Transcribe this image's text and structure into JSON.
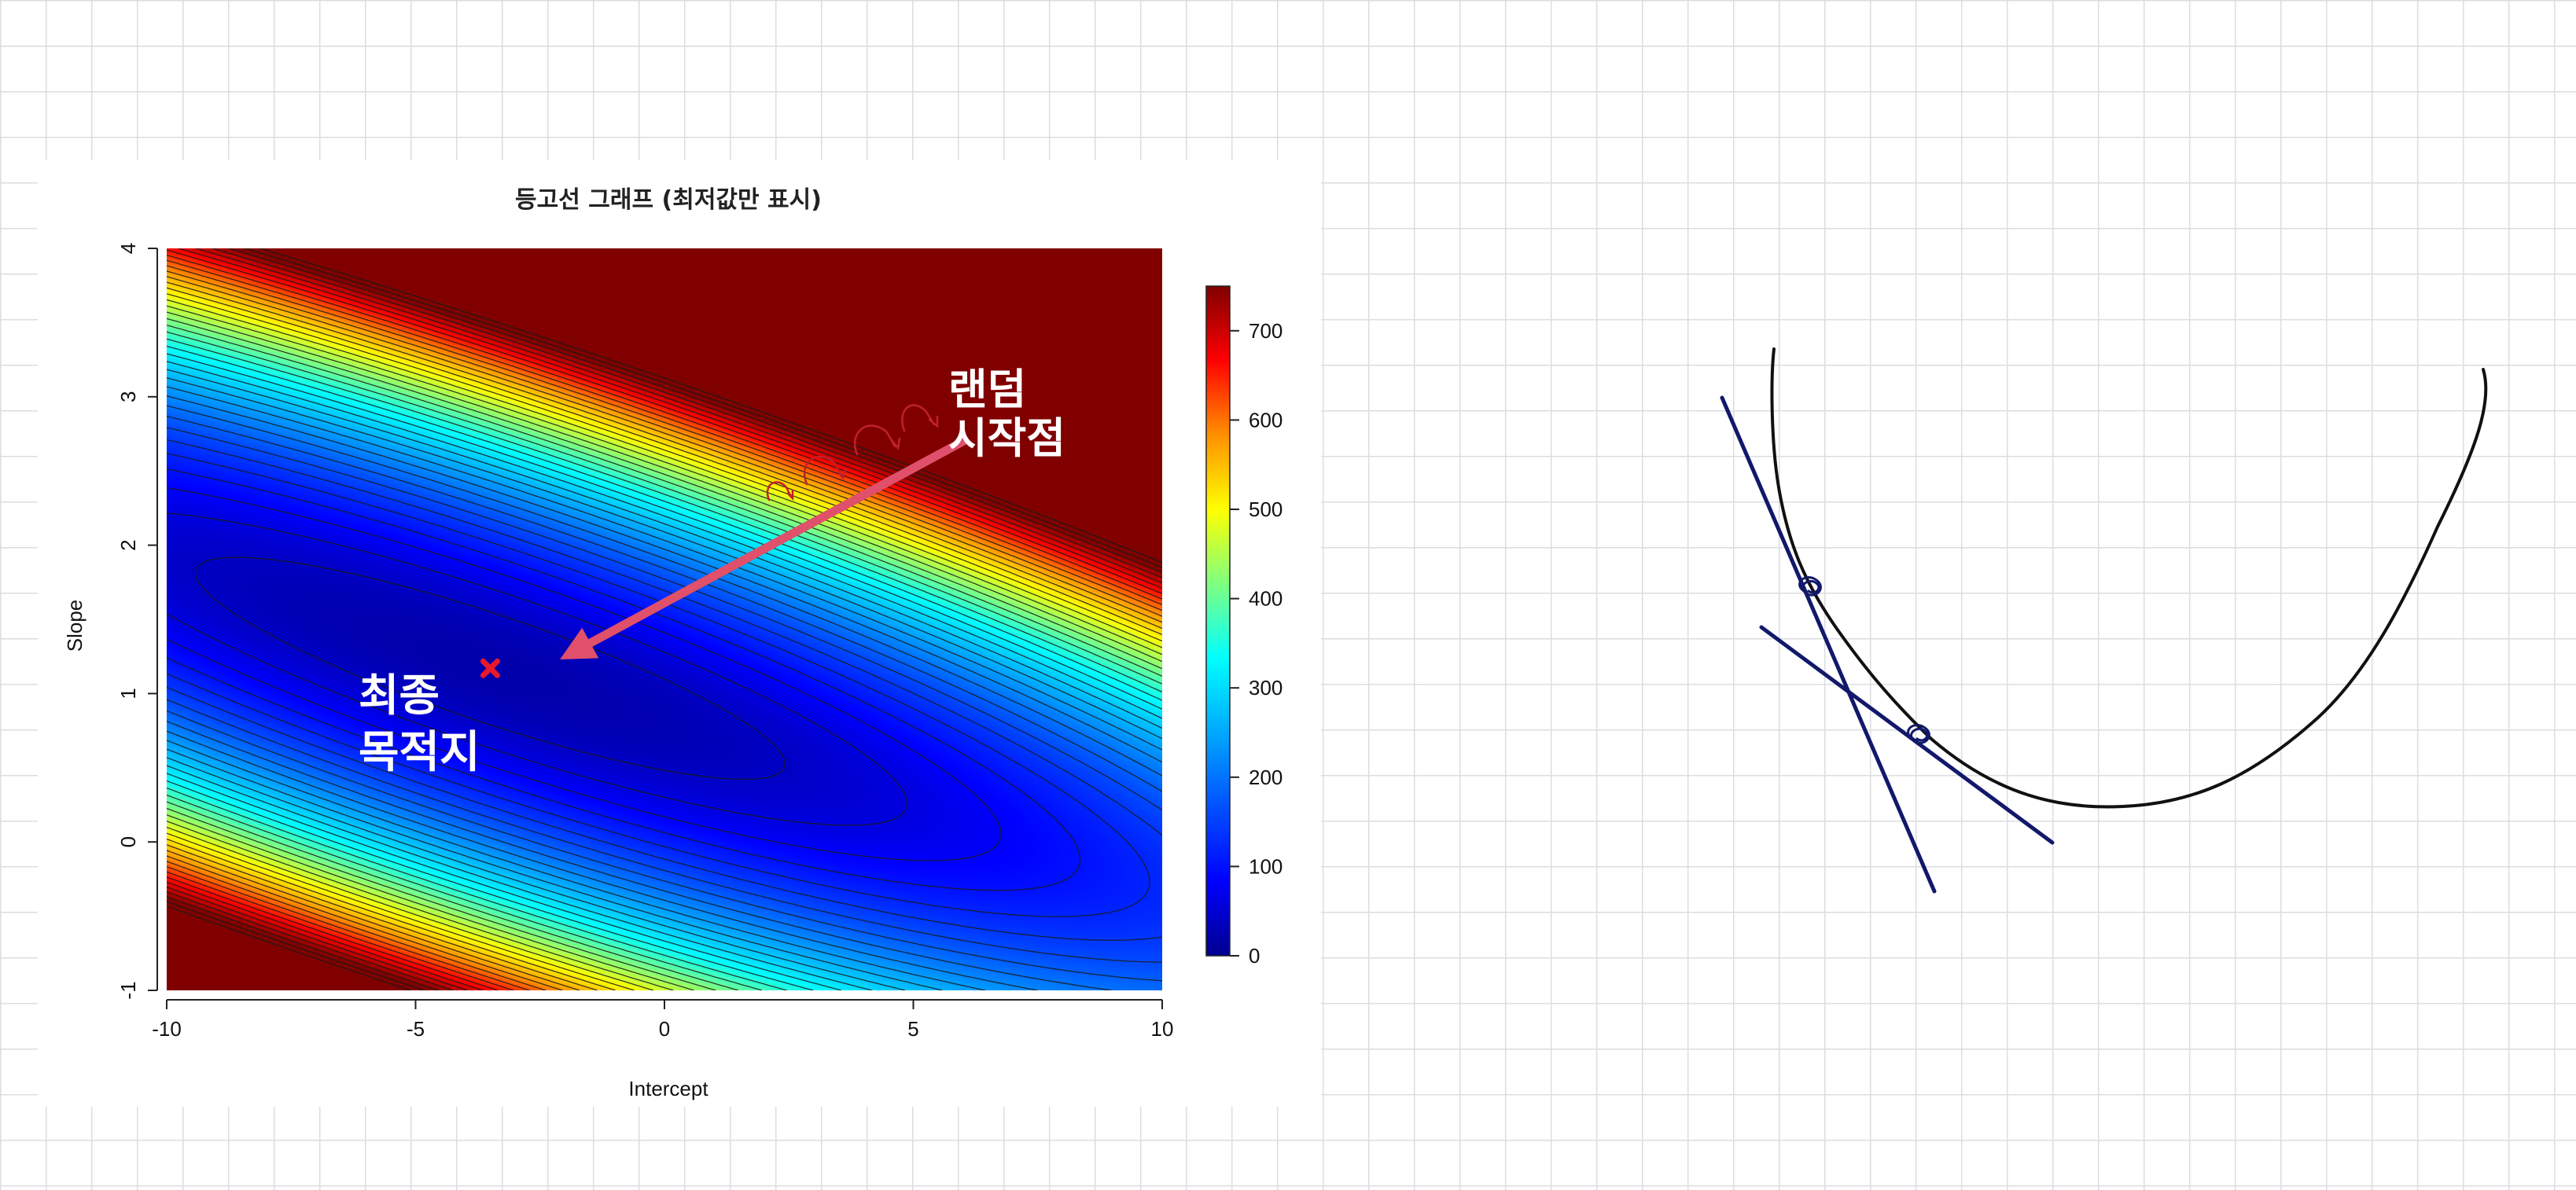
{
  "chart_data": {
    "type": "heatmap",
    "title": "등고선 그래프 (최저값만 표시)",
    "xlabel": "Intercept",
    "ylabel": "Slope",
    "xlim": [
      -10,
      10
    ],
    "ylim": [
      -1,
      4
    ],
    "x_ticks": [
      "-10",
      "-5",
      "0",
      "5",
      "10"
    ],
    "y_ticks": [
      "-1",
      "0",
      "1",
      "2",
      "3",
      "4"
    ],
    "colorbar": {
      "ticks": [
        "0",
        "100",
        "200",
        "300",
        "400",
        "500",
        "600",
        "700"
      ],
      "range": [
        0,
        750
      ],
      "palette": [
        "#00008f",
        "#0000ff",
        "#0050ff",
        "#00a8ff",
        "#00ffff",
        "#7fff80",
        "#ffff00",
        "#ff9000",
        "#ff0000",
        "#800000"
      ]
    },
    "surface": {
      "function": "sum of squared errors",
      "minimum": {
        "intercept": -3.5,
        "slope": 1.17
      },
      "contour_step": 20
    },
    "markers": [
      {
        "name": "minimum",
        "intercept": -3.5,
        "slope": 1.17,
        "symbol": "x",
        "color": "#e8192c"
      }
    ],
    "annotations": {
      "start_label": [
        "랜덤",
        "시작점"
      ],
      "end_label": [
        "최종",
        "목적지"
      ],
      "arrow": {
        "from": {
          "intercept": 6,
          "slope": 2.7
        },
        "to": {
          "intercept": -2.1,
          "slope": 1.23
        },
        "color": "#e0506a"
      }
    }
  }
}
